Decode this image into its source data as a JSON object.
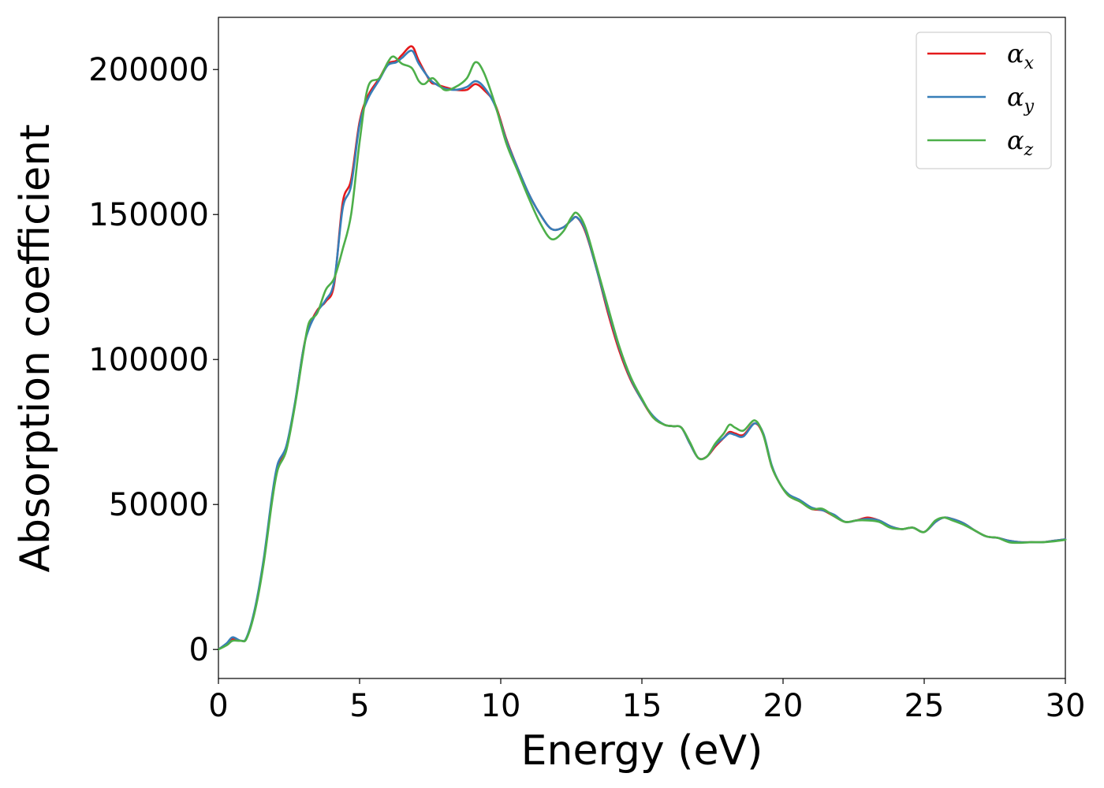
{
  "chart_data": {
    "type": "line",
    "xlabel": "Energy (eV)",
    "ylabel": "Absorption coefficient",
    "xlim": [
      0,
      30
    ],
    "ylim": [
      -10000,
      218000
    ],
    "x_ticks": [
      "0",
      "5",
      "10",
      "15",
      "20",
      "25",
      "30"
    ],
    "x_tick_values": [
      0,
      5,
      10,
      15,
      20,
      25,
      30
    ],
    "y_ticks": [
      "0",
      "50000",
      "100000",
      "150000",
      "200000"
    ],
    "y_tick_values": [
      0,
      50000,
      100000,
      150000,
      200000
    ],
    "grid": false,
    "legend_position": "top-right",
    "series": [
      {
        "name": "α",
        "subscript": "x",
        "color": "#e41a1c",
        "x": [
          0,
          0.3,
          0.5,
          0.8,
          1.0,
          1.3,
          1.6,
          1.9,
          2.1,
          2.4,
          2.7,
          3.0,
          3.2,
          3.5,
          3.8,
          4.1,
          4.4,
          4.7,
          5.0,
          5.3,
          5.7,
          6.0,
          6.3,
          6.5,
          6.85,
          7.1,
          7.5,
          7.7,
          8.0,
          8.4,
          8.8,
          9.1,
          9.4,
          9.8,
          10.2,
          10.6,
          11.0,
          11.4,
          11.8,
          12.2,
          12.5,
          12.7,
          13.0,
          13.4,
          13.8,
          14.2,
          14.6,
          15.0,
          15.4,
          15.8,
          16.1,
          16.4,
          16.7,
          17.0,
          17.3,
          17.6,
          17.9,
          18.1,
          18.3,
          18.6,
          19.0,
          19.3,
          19.6,
          19.9,
          20.2,
          20.6,
          21.0,
          21.4,
          21.8,
          22.2,
          22.6,
          23.0,
          23.4,
          23.8,
          24.2,
          24.6,
          25.0,
          25.4,
          25.7,
          26.0,
          26.4,
          26.8,
          27.2,
          27.6,
          28.0,
          28.4,
          28.8,
          29.2,
          29.6,
          30.0
        ],
        "y": [
          0,
          2000,
          3500,
          3000,
          4000,
          14000,
          30000,
          52000,
          63000,
          69000,
          84000,
          103000,
          111000,
          117000,
          120000,
          126000,
          154000,
          162000,
          182000,
          191000,
          197000,
          202000,
          203000,
          205000,
          208000,
          203000,
          196000,
          195000,
          194000,
          193000,
          193000,
          195000,
          193000,
          188000,
          176000,
          166000,
          157000,
          150000,
          145000,
          145500,
          148000,
          149000,
          144000,
          131000,
          116000,
          103000,
          93000,
          86000,
          80000,
          77500,
          77000,
          76500,
          71000,
          66000,
          66500,
          70000,
          73000,
          75000,
          74500,
          74000,
          78000,
          74000,
          63000,
          57000,
          53000,
          51000,
          48500,
          48000,
          46000,
          44000,
          44500,
          45500,
          44500,
          42500,
          41500,
          42000,
          40500,
          44000,
          45500,
          45000,
          43500,
          41000,
          39000,
          38500,
          37500,
          37000,
          37000,
          37000,
          37500,
          38000
        ]
      },
      {
        "name": "α",
        "subscript": "y",
        "color": "#377eb8",
        "x": [
          0,
          0.3,
          0.5,
          0.8,
          1.0,
          1.3,
          1.6,
          1.9,
          2.1,
          2.4,
          2.7,
          3.0,
          3.2,
          3.5,
          3.8,
          4.1,
          4.4,
          4.7,
          5.0,
          5.3,
          5.7,
          6.0,
          6.3,
          6.5,
          6.85,
          7.1,
          7.5,
          7.7,
          8.0,
          8.4,
          8.8,
          9.1,
          9.4,
          9.8,
          10.2,
          10.6,
          11.0,
          11.4,
          11.8,
          12.2,
          12.5,
          12.7,
          13.0,
          13.4,
          13.8,
          14.2,
          14.6,
          15.0,
          15.4,
          15.8,
          16.1,
          16.4,
          16.7,
          17.0,
          17.3,
          17.6,
          17.9,
          18.1,
          18.3,
          18.6,
          19.0,
          19.3,
          19.6,
          19.9,
          20.2,
          20.6,
          21.0,
          21.4,
          21.8,
          22.2,
          22.6,
          23.0,
          23.4,
          23.8,
          24.2,
          24.6,
          25.0,
          25.4,
          25.7,
          26.0,
          26.4,
          26.8,
          27.2,
          27.6,
          28.0,
          28.4,
          28.8,
          29.2,
          29.6,
          30.0
        ],
        "y": [
          0,
          2200,
          4200,
          3000,
          4200,
          14500,
          31000,
          53000,
          64000,
          70000,
          84500,
          103000,
          110500,
          116500,
          120500,
          127000,
          152000,
          160000,
          181000,
          190000,
          196500,
          201500,
          202500,
          204000,
          206500,
          202000,
          196500,
          195000,
          193500,
          193000,
          194000,
          196000,
          194000,
          187500,
          175500,
          166000,
          157000,
          150000,
          145000,
          145500,
          148000,
          149000,
          144500,
          131000,
          117000,
          104000,
          93500,
          86000,
          80500,
          77500,
          77000,
          76500,
          71000,
          66000,
          66500,
          70500,
          73000,
          74500,
          74000,
          73500,
          78000,
          74500,
          63500,
          57000,
          53500,
          51500,
          49000,
          48000,
          46500,
          44000,
          44500,
          45000,
          44500,
          42500,
          41500,
          42000,
          40500,
          44000,
          45500,
          45000,
          43500,
          41000,
          39000,
          38500,
          37500,
          37000,
          37000,
          37000,
          37500,
          38000
        ]
      },
      {
        "name": "α",
        "subscript": "z",
        "color": "#4daf4a",
        "x": [
          0,
          0.3,
          0.5,
          0.8,
          1.0,
          1.3,
          1.6,
          1.9,
          2.1,
          2.4,
          2.7,
          3.0,
          3.2,
          3.5,
          3.8,
          4.1,
          4.4,
          4.7,
          5.0,
          5.3,
          5.7,
          6.0,
          6.2,
          6.5,
          6.85,
          7.1,
          7.3,
          7.6,
          8.0,
          8.4,
          8.8,
          9.1,
          9.4,
          9.8,
          10.2,
          10.6,
          11.0,
          11.4,
          11.8,
          12.2,
          12.5,
          12.7,
          13.0,
          13.4,
          13.8,
          14.2,
          14.6,
          15.0,
          15.4,
          15.8,
          16.1,
          16.4,
          16.7,
          17.0,
          17.3,
          17.6,
          17.9,
          18.1,
          18.3,
          18.6,
          19.0,
          19.3,
          19.6,
          19.9,
          20.2,
          20.6,
          21.0,
          21.4,
          21.8,
          22.2,
          22.6,
          23.0,
          23.4,
          23.8,
          24.2,
          24.6,
          25.0,
          25.4,
          25.7,
          26.0,
          26.4,
          26.8,
          27.2,
          27.6,
          28.0,
          28.4,
          28.8,
          29.2,
          29.6,
          30.0
        ],
        "y": [
          0,
          1500,
          3000,
          3000,
          3800,
          13500,
          29500,
          51000,
          62000,
          68500,
          83500,
          102000,
          112500,
          116000,
          124000,
          128000,
          138000,
          150000,
          175000,
          194000,
          197000,
          202500,
          204500,
          202000,
          200500,
          196000,
          195000,
          197000,
          193000,
          194000,
          197000,
          202500,
          199000,
          188000,
          174500,
          165000,
          155500,
          147000,
          141500,
          144000,
          149000,
          150500,
          145500,
          132000,
          118000,
          104500,
          94000,
          86500,
          80000,
          77500,
          77000,
          76500,
          71500,
          66000,
          66500,
          71000,
          74500,
          77500,
          76500,
          75500,
          79000,
          74000,
          63000,
          57000,
          53000,
          51000,
          48500,
          48500,
          46000,
          44000,
          44500,
          44500,
          44000,
          42000,
          41500,
          42000,
          40500,
          44500,
          45500,
          44500,
          43000,
          41000,
          39000,
          38500,
          37000,
          36800,
          37000,
          37000,
          37300,
          37800
        ]
      }
    ]
  }
}
